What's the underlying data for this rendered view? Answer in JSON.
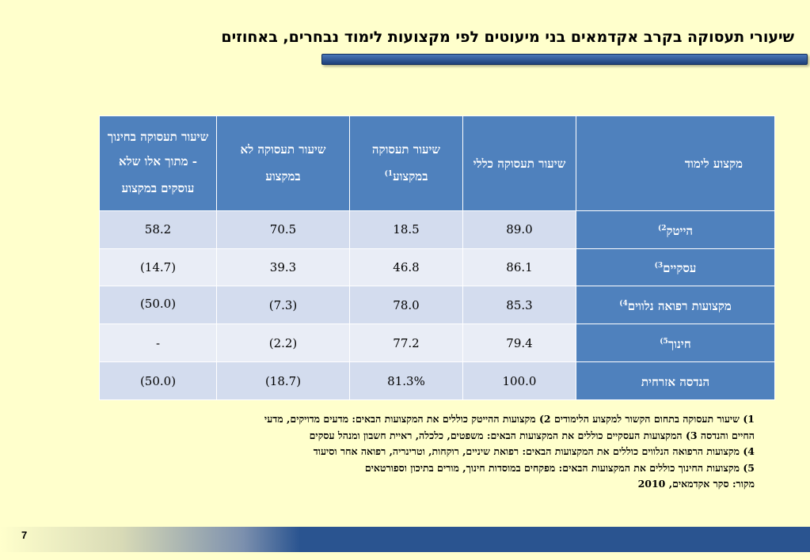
{
  "title": "שיעורי תעסוקה בקרב אקדמאים בני מיעוטים לפי מקצועות לימוד נבחרים, באחוזים",
  "table": {
    "headers": [
      {
        "text": "מקצוע לימוד",
        "sup": ""
      },
      {
        "text": "שיעור תעסוקה כללי",
        "sup": ""
      },
      {
        "text": "שיעור תעסוקה במקצוע",
        "sup": "1)"
      },
      {
        "text": "שיעור תעסוקה לא במקצוע",
        "sup": ""
      },
      {
        "text": "שיעור תעסוקה בחינוך - מתוך אלו שלא עוסקים במקצוע",
        "sup": ""
      }
    ],
    "rows": [
      {
        "label": "הייטק",
        "sup": "2)",
        "values": [
          "89.0",
          "18.5",
          "70.5",
          "58.2"
        ]
      },
      {
        "label": "עסקיים",
        "sup": "3)",
        "values": [
          "86.1",
          "46.8",
          "39.3",
          "(14.7)"
        ]
      },
      {
        "label": "מקצועות רפואה נלווים",
        "sup": "4)",
        "values": [
          "85.3",
          "78.0",
          "(7.3)",
          "(50.0)"
        ]
      },
      {
        "label": "חינוך",
        "sup": "5)",
        "values": [
          "79.4",
          "77.2",
          "(2.2)",
          "-"
        ]
      },
      {
        "label": "הנדסה אזרחית",
        "sup": "",
        "values": [
          "100.0",
          "81.3%",
          "(18.7)",
          "(50.0)"
        ]
      }
    ]
  },
  "notes": [
    "1) שיעור תעסוקה בתחום הקשור למקצוע הלימודים    2) מקצועות ההייטק כוללים את המקצועות הבאים: מדעים מדויקים, מדעי",
    "החיים והנדסה    3) המקצועות העסקיים כוללים את המקצועות הבאים: משפטים, כלכלה, ראיית חשבון ומנהל עסקים",
    "4) מקצועות הרפואה הנלווים כוללים את המקצועות הבאים: רפואת שיניים, רוקחות, וטרינריה, רפואה אחר וסיעוד",
    "5) מקצועות החינוך כוללים את המקצועות הבאים: מפקחים במוסדות חינוך, מורים בתיכון וספורטאים",
    "מקור: סקר אקדמאים, 2010"
  ],
  "page_number": "7",
  "colors": {
    "background": "#ffffcc",
    "header_blue": "#4f81bd",
    "row_light": "#d3dcee",
    "row_lighter": "#e9edf6",
    "footer_blue": "#2a5490"
  }
}
